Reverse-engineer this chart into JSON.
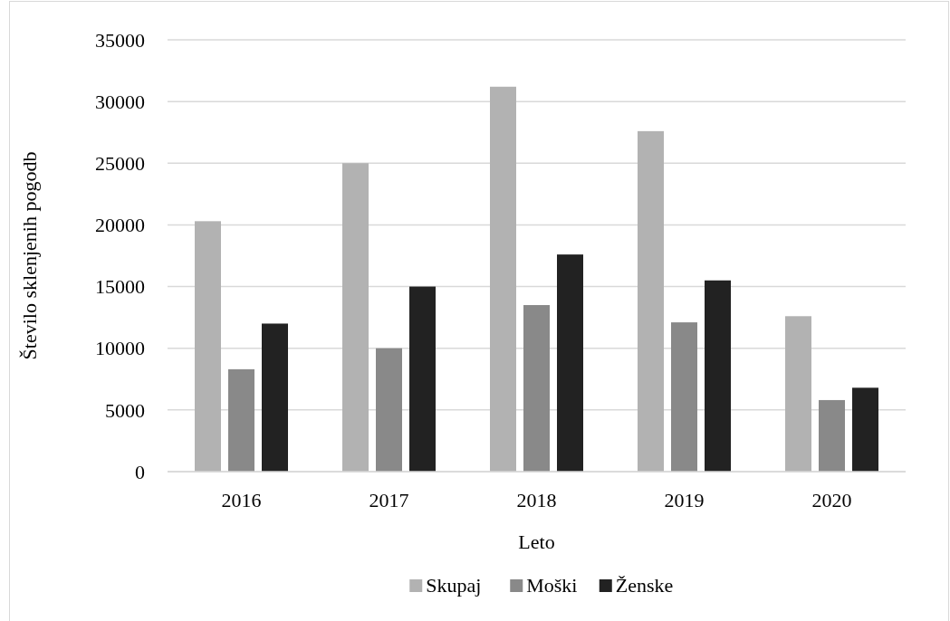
{
  "chart_data": {
    "type": "bar",
    "xlabel": "Leto",
    "ylabel": "Število sklenjenih pogodb",
    "categories": [
      "2016",
      "2017",
      "2018",
      "2019",
      "2020"
    ],
    "series": [
      {
        "name": "Skupaj",
        "color": "#b2b2b2",
        "values": [
          20300,
          25000,
          31200,
          27600,
          12600
        ]
      },
      {
        "name": "Moški",
        "color": "#898989",
        "values": [
          8300,
          10000,
          13500,
          12100,
          5800
        ]
      },
      {
        "name": "Ženske",
        "color": "#222222",
        "values": [
          12000,
          15000,
          17600,
          15500,
          6800
        ]
      }
    ],
    "ylim": [
      0,
      35000
    ],
    "yticks": [
      0,
      5000,
      10000,
      15000,
      20000,
      25000,
      30000,
      35000
    ],
    "grid": "y",
    "legend": "bottom"
  }
}
